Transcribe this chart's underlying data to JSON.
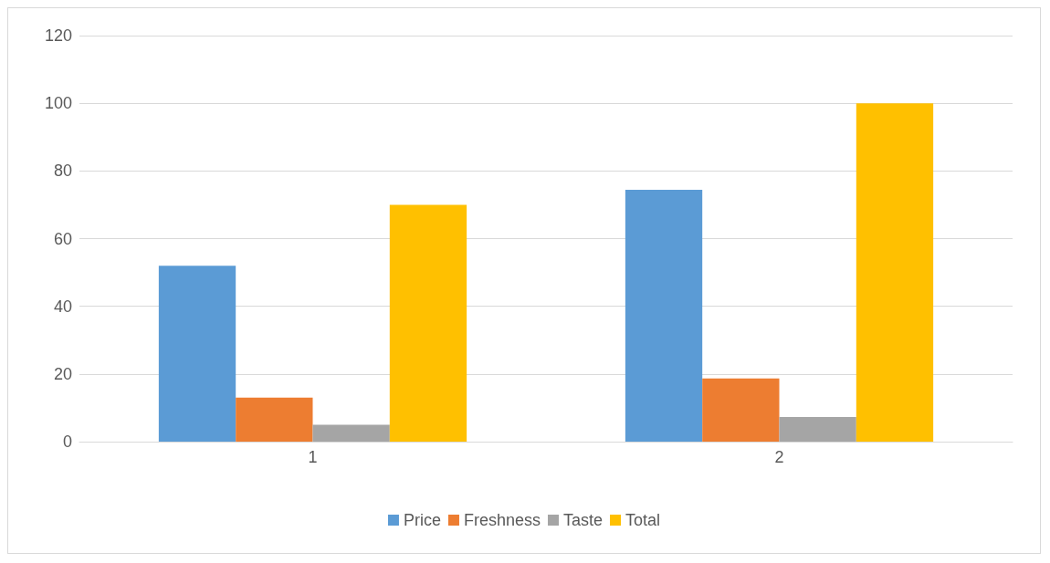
{
  "chart_data": {
    "type": "bar",
    "categories": [
      "1",
      "2"
    ],
    "series": [
      {
        "name": "Price",
        "color": "#5b9bd5",
        "values": [
          52,
          74.4
        ]
      },
      {
        "name": "Freshness",
        "color": "#ed7d31",
        "values": [
          13,
          18.7
        ]
      },
      {
        "name": "Taste",
        "color": "#a5a5a5",
        "values": [
          5,
          7.3
        ]
      },
      {
        "name": "Total",
        "color": "#ffc000",
        "values": [
          70,
          100
        ]
      }
    ],
    "ylim": [
      0,
      120
    ],
    "yticks": [
      0,
      20,
      40,
      60,
      80,
      100,
      120
    ],
    "grid": "y",
    "legend": "bottom"
  }
}
